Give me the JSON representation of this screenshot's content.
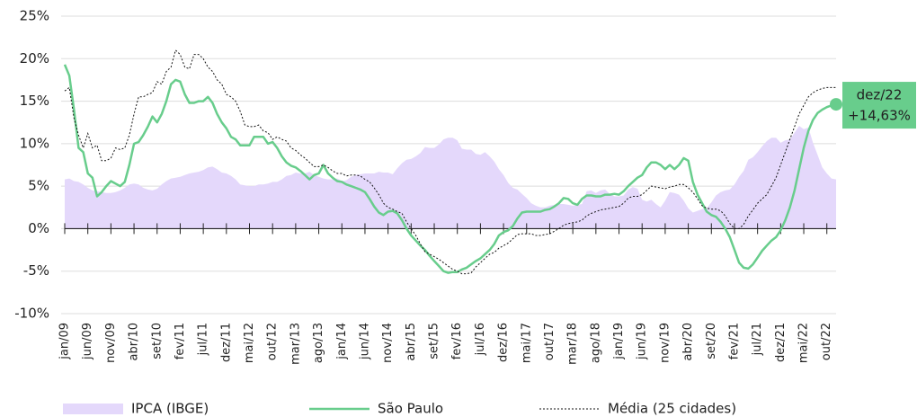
{
  "chart_data": {
    "type": "line",
    "categories": [
      "jan/09",
      null,
      null,
      null,
      null,
      "jun/09",
      null,
      null,
      null,
      null,
      "nov/09",
      null,
      null,
      null,
      null,
      "abr/10",
      null,
      null,
      null,
      null,
      "set/10",
      null,
      null,
      null,
      null,
      "fev/11",
      null,
      null,
      null,
      null,
      "jul/11",
      null,
      null,
      null,
      null,
      "dez/11",
      null,
      null,
      null,
      null,
      "mai/12",
      null,
      null,
      null,
      null,
      "out/12",
      null,
      null,
      null,
      null,
      "mar/13",
      null,
      null,
      null,
      null,
      "ago/13",
      null,
      null,
      null,
      null,
      "jan/14",
      null,
      null,
      null,
      null,
      "jun/14",
      null,
      null,
      null,
      null,
      "nov/14",
      null,
      null,
      null,
      null,
      "abr/15",
      null,
      null,
      null,
      null,
      "set/15",
      null,
      null,
      null,
      null,
      "fev/16",
      null,
      null,
      null,
      null,
      "jul/16",
      null,
      null,
      null,
      null,
      "dez/16",
      null,
      null,
      null,
      null,
      "mai/17",
      null,
      null,
      null,
      null,
      "out/17",
      null,
      null,
      null,
      null,
      "mar/18",
      null,
      null,
      null,
      null,
      "ago/18",
      null,
      null,
      null,
      null,
      "jan/19",
      null,
      null,
      null,
      null,
      "jun/19",
      null,
      null,
      null,
      null,
      "nov/19",
      null,
      null,
      null,
      null,
      "abr/20",
      null,
      null,
      null,
      null,
      "set/20",
      null,
      null,
      null,
      null,
      "fev/21",
      null,
      null,
      null,
      null,
      "jul/21",
      null,
      null,
      null,
      null,
      "dez/21",
      null,
      null,
      null,
      null,
      "mai/22",
      null,
      null,
      null,
      null,
      "out/22",
      null,
      null
    ],
    "series": [
      {
        "name": "IPCA (IBGE)",
        "style": "area",
        "color": "#e4d8fb",
        "values": [
          5.8,
          5.9,
          5.6,
          5.5,
          5.2,
          4.8,
          4.5,
          4.4,
          4.3,
          4.2,
          4.2,
          4.3,
          4.5,
          4.8,
          5.2,
          5.3,
          5.2,
          4.8,
          4.6,
          4.5,
          4.7,
          5.2,
          5.6,
          5.9,
          6,
          6.1,
          6.3,
          6.5,
          6.6,
          6.7,
          6.9,
          7.2,
          7.3,
          7,
          6.6,
          6.5,
          6.2,
          5.8,
          5.2,
          5.1,
          5,
          5,
          5.2,
          5.2,
          5.3,
          5.5,
          5.5,
          5.8,
          6.2,
          6.3,
          6.6,
          6.5,
          6.5,
          6.7,
          6.3,
          6.1,
          5.9,
          5.8,
          5.8,
          5.9,
          5.6,
          5.7,
          6.1,
          6.3,
          6.4,
          6.5,
          6.5,
          6.5,
          6.7,
          6.6,
          6.6,
          6.4,
          7.1,
          7.7,
          8.1,
          8.2,
          8.5,
          8.9,
          9.6,
          9.5,
          9.5,
          9.9,
          10.5,
          10.7,
          10.7,
          10.4,
          9.4,
          9.3,
          9.3,
          8.8,
          8.7,
          9,
          8.5,
          7.9,
          7,
          6.3,
          5.4,
          4.8,
          4.6,
          4.1,
          3.6,
          3,
          2.7,
          2.5,
          2.5,
          2.7,
          2.8,
          2.9,
          2.9,
          2.8,
          2.7,
          2.8,
          2.9,
          4.4,
          4.5,
          4.2,
          4.5,
          4.6,
          4.1,
          3.8,
          3.8,
          3.9,
          4.6,
          4.9,
          4.7,
          3.4,
          3.2,
          3.4,
          2.9,
          2.5,
          3.3,
          4.3,
          4.2,
          4,
          3.3,
          2.4,
          1.9,
          2.1,
          2.3,
          2.4,
          3.1,
          3.9,
          4.3,
          4.5,
          4.6,
          5.2,
          6.1,
          6.8,
          8.1,
          8.4,
          9,
          9.7,
          10.3,
          10.7,
          10.7,
          10.1,
          10.4,
          10.5,
          11.3,
          12.1,
          11.7,
          11.9,
          10.1,
          8.7,
          7.2,
          6.5,
          5.9,
          5.8
        ]
      },
      {
        "name": "São Paulo",
        "style": "solid",
        "color": "#68cd8c",
        "values": [
          19.3,
          18,
          14,
          9.5,
          9,
          6.5,
          6,
          3.8,
          4.3,
          5,
          5.6,
          5.3,
          5,
          5.5,
          7.5,
          10,
          10.2,
          11,
          12,
          13.2,
          12.5,
          13.5,
          15,
          17,
          17.5,
          17.3,
          15.8,
          14.8,
          14.8,
          15,
          15,
          15.5,
          14.8,
          13.5,
          12.5,
          11.8,
          10.8,
          10.5,
          9.8,
          9.8,
          9.8,
          10.8,
          10.8,
          10.8,
          10,
          10.2,
          9.5,
          8.5,
          7.8,
          7.4,
          7.2,
          6.8,
          6.3,
          5.8,
          6.3,
          6.5,
          7.5,
          6.5,
          6,
          5.6,
          5.5,
          5.2,
          5,
          4.8,
          4.6,
          4.3,
          3.5,
          2.6,
          1.9,
          1.6,
          2,
          2.1,
          1.8,
          1,
          0,
          -0.8,
          -1.4,
          -2,
          -2.5,
          -3.2,
          -3.8,
          -4.4,
          -5,
          -5.2,
          -5.1,
          -5.1,
          -4.8,
          -4.6,
          -4.2,
          -3.8,
          -3.5,
          -3,
          -2.5,
          -1.8,
          -0.8,
          -0.4,
          -0.2,
          0.3,
          1.2,
          1.9,
          2,
          2,
          2,
          2,
          2.2,
          2.3,
          2.6,
          3,
          3.6,
          3.5,
          3,
          2.8,
          3.5,
          3.9,
          3.9,
          3.8,
          3.8,
          4,
          4,
          4.1,
          4,
          4.4,
          5,
          5.5,
          6,
          6.3,
          7.2,
          7.8,
          7.8,
          7.5,
          7,
          7.5,
          7,
          7.5,
          8.3,
          8,
          5.5,
          4,
          3,
          2,
          1.6,
          1.4,
          0.8,
          0,
          -1,
          -2.5,
          -4,
          -4.6,
          -4.7,
          -4.2,
          -3.4,
          -2.6,
          -2,
          -1.4,
          -1,
          -0.2,
          1,
          2.5,
          4.5,
          7,
          9.5,
          11.5,
          12.8,
          13.6,
          14,
          14.3,
          14.5,
          14.63
        ]
      },
      {
        "name": "Média (25 cidades)",
        "style": "dotted",
        "color": "#111111",
        "values": [
          16.2,
          16.6,
          13,
          11,
          9.5,
          11.2,
          9.5,
          9.8,
          8,
          8,
          8.3,
          9.5,
          9.3,
          9.5,
          11,
          13.5,
          15.5,
          15.5,
          15.8,
          16,
          17.3,
          17,
          18.5,
          19,
          21,
          20.5,
          19,
          18.8,
          20.5,
          20.5,
          20,
          19,
          18.5,
          17.5,
          17,
          15.8,
          15.5,
          15,
          13.8,
          12.2,
          12,
          12,
          12.2,
          11.5,
          11.3,
          10.5,
          10.8,
          10.5,
          10.3,
          9.5,
          9.2,
          8.7,
          8.3,
          7.8,
          7.3,
          7.3,
          7.5,
          7.2,
          6.8,
          6.5,
          6.5,
          6.2,
          6.3,
          6.3,
          6.2,
          5.8,
          5.5,
          4.8,
          4,
          3,
          2.5,
          2.3,
          2,
          1.8,
          0.8,
          0,
          -0.8,
          -1.8,
          -2.7,
          -3,
          -3.3,
          -3.6,
          -4,
          -4.4,
          -4.8,
          -5,
          -5.3,
          -5.3,
          -5.2,
          -4.5,
          -4,
          -3.5,
          -3,
          -2.8,
          -2.3,
          -2,
          -1.7,
          -1.2,
          -0.7,
          -0.6,
          -0.6,
          -0.6,
          -0.8,
          -0.8,
          -0.7,
          -0.6,
          -0.3,
          0,
          0.4,
          0.6,
          0.7,
          0.8,
          1,
          1.5,
          1.8,
          2,
          2.2,
          2.3,
          2.4,
          2.5,
          2.6,
          3,
          3.6,
          3.8,
          3.8,
          4,
          4.5,
          5,
          4.9,
          4.8,
          4.7,
          4.9,
          5,
          5.2,
          5.2,
          4.8,
          4.3,
          3.5,
          2.7,
          2.4,
          2.3,
          2.3,
          2.1,
          1.5,
          0.6,
          0,
          0,
          0.5,
          1.5,
          2.2,
          3,
          3.5,
          4,
          5,
          6,
          7.5,
          9,
          10.5,
          12,
          13.5,
          14.5,
          15.5,
          16,
          16.3,
          16.5,
          16.6,
          16.6,
          16.6
        ]
      }
    ],
    "end_label": {
      "series": 1,
      "date": "dez/22",
      "text": "+14,63%"
    },
    "ylim": [
      -10,
      25
    ],
    "yticks": [
      {
        "value": -10,
        "label": "-10%"
      },
      {
        "value": -5,
        "label": "-5%"
      },
      {
        "value": 0,
        "label": "0%"
      },
      {
        "value": 5,
        "label": "5%"
      },
      {
        "value": 10,
        "label": "10%"
      },
      {
        "value": 15,
        "label": "15%"
      },
      {
        "value": 20,
        "label": "20%"
      },
      {
        "value": 25,
        "label": "25%"
      }
    ],
    "grid": true
  }
}
